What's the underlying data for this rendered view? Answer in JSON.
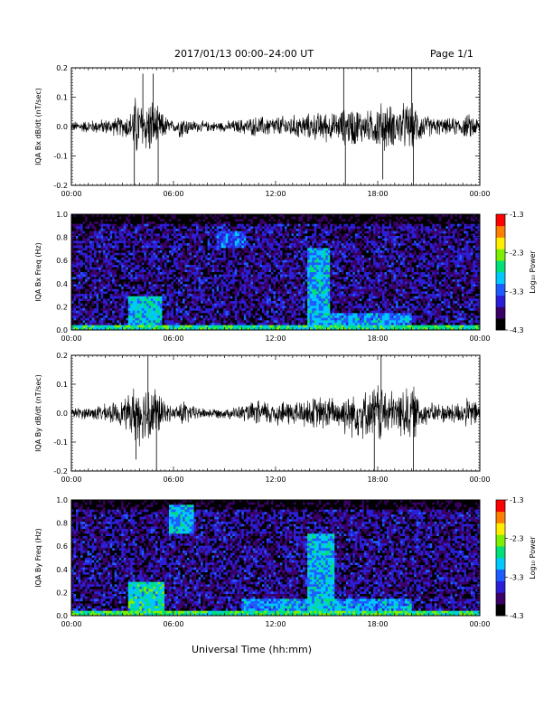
{
  "header": {
    "title": "2017/01/13  00:00–24:00 UT",
    "page": "Page 1/1"
  },
  "xaxis_title": "Universal Time (hh:mm)",
  "colorbar": {
    "label": "Log₁₀ Power",
    "ticks": [
      "-1.3",
      "-2.3",
      "-3.3",
      "-4.3"
    ],
    "colors": [
      "#000000",
      "#3a0066",
      "#2a1fd6",
      "#1e5cff",
      "#00c8ff",
      "#00e07a",
      "#7cf000",
      "#ffee00",
      "#ff8000",
      "#ff0000"
    ]
  },
  "chart_data": [
    {
      "type": "line",
      "title": "",
      "xlabel": "",
      "ylabel": "IQA Bx dB/dt (nT/sec)",
      "x_ticks": [
        "00:00",
        "06:00",
        "12:00",
        "18:00",
        "00:00"
      ],
      "xlim": [
        0,
        24
      ],
      "ylim": [
        -0.2,
        0.2
      ],
      "y_ticks": [
        "0.2",
        "0.1",
        "0.0",
        "-0.1",
        "-0.2"
      ],
      "envelope": {
        "hours": [
          0,
          1,
          2,
          3,
          3.5,
          3.8,
          4.0,
          4.3,
          4.6,
          5.0,
          5.4,
          6.0,
          6.5,
          7,
          8,
          9,
          10,
          11,
          12,
          13,
          14,
          15,
          15.5,
          16,
          16.5,
          17,
          17.5,
          18,
          18.5,
          19,
          19.5,
          20,
          20.5,
          21,
          22,
          23,
          23.5,
          24
        ],
        "amplitude": [
          0.02,
          0.025,
          0.03,
          0.04,
          0.06,
          0.13,
          0.1,
          0.09,
          0.12,
          0.08,
          0.05,
          0.02,
          0.05,
          0.025,
          0.02,
          0.02,
          0.03,
          0.04,
          0.04,
          0.045,
          0.05,
          0.06,
          0.05,
          0.07,
          0.08,
          0.07,
          0.06,
          0.09,
          0.1,
          0.07,
          0.09,
          0.09,
          0.06,
          0.04,
          0.03,
          0.04,
          0.05,
          0.03
        ]
      },
      "spikes": [
        {
          "hour": 3.7,
          "value": -0.2
        },
        {
          "hour": 4.2,
          "value": 0.18
        },
        {
          "hour": 4.8,
          "value": 0.18
        },
        {
          "hour": 5.1,
          "value": -0.2
        },
        {
          "hour": 16.0,
          "value": 0.2
        },
        {
          "hour": 16.1,
          "value": -0.2
        },
        {
          "hour": 18.3,
          "value": -0.18
        },
        {
          "hour": 20.0,
          "value": 0.2
        },
        {
          "hour": 20.1,
          "value": -0.2
        }
      ]
    },
    {
      "type": "heatmap",
      "title": "",
      "xlabel": "",
      "ylabel": "IQA Bx Freq (Hz)",
      "x_ticks": [
        "00:00",
        "06:00",
        "12:00",
        "18:00",
        "00:00"
      ],
      "xlim": [
        0,
        24
      ],
      "ylim": [
        0,
        1.0
      ],
      "y_ticks": [
        "1.0",
        "0.8",
        "0.6",
        "0.4",
        "0.2",
        "0.0"
      ],
      "zlim": [
        -4.3,
        -1.3
      ],
      "z_label": "Log₁₀ Power",
      "background_log_power": -3.8,
      "features": [
        {
          "hours": [
            0,
            24
          ],
          "freq": [
            0.0,
            0.04
          ],
          "log_power": -2.7
        },
        {
          "hours": [
            3.3,
            5.3
          ],
          "freq": [
            0.0,
            0.3
          ],
          "log_power": -2.9
        },
        {
          "hours": [
            13.8,
            15.2
          ],
          "freq": [
            0.0,
            0.7
          ],
          "log_power": -3.0
        },
        {
          "hours": [
            8.5,
            10.2
          ],
          "freq": [
            0.7,
            0.85
          ],
          "log_power": -3.3
        },
        {
          "hours": [
            15,
            20
          ],
          "freq": [
            0.0,
            0.15
          ],
          "log_power": -3.1
        }
      ]
    },
    {
      "type": "line",
      "title": "",
      "xlabel": "",
      "ylabel": "IQA By dB/dt (nT/sec)",
      "x_ticks": [
        "00:00",
        "06:00",
        "12:00",
        "18:00",
        "00:00"
      ],
      "xlim": [
        0,
        24
      ],
      "ylim": [
        -0.2,
        0.2
      ],
      "y_ticks": [
        "0.2",
        "0.1",
        "0.0",
        "-0.1",
        "-0.2"
      ],
      "envelope": {
        "hours": [
          0,
          1,
          2,
          3,
          3.5,
          3.8,
          4.0,
          4.3,
          4.6,
          5.0,
          5.4,
          6.0,
          6.5,
          7,
          8,
          9,
          10,
          11,
          12,
          13,
          14,
          15,
          15.5,
          16,
          16.5,
          17,
          17.5,
          18,
          18.5,
          19,
          19.5,
          20,
          20.5,
          21,
          22,
          23,
          23.5,
          24
        ],
        "amplitude": [
          0.02,
          0.025,
          0.035,
          0.05,
          0.08,
          0.13,
          0.12,
          0.1,
          0.15,
          0.1,
          0.05,
          0.02,
          0.06,
          0.03,
          0.02,
          0.02,
          0.03,
          0.05,
          0.05,
          0.05,
          0.06,
          0.07,
          0.06,
          0.08,
          0.09,
          0.1,
          0.08,
          0.13,
          0.1,
          0.08,
          0.1,
          0.12,
          0.06,
          0.04,
          0.04,
          0.05,
          0.06,
          0.04
        ]
      },
      "spikes": [
        {
          "hour": 3.8,
          "value": -0.16
        },
        {
          "hour": 4.5,
          "value": 0.2
        },
        {
          "hour": 5.0,
          "value": -0.2
        },
        {
          "hour": 17.8,
          "value": -0.2
        },
        {
          "hour": 18.2,
          "value": 0.2
        },
        {
          "hour": 20.1,
          "value": -0.2
        }
      ]
    },
    {
      "type": "heatmap",
      "title": "",
      "xlabel": "",
      "ylabel": "IQA By Freq (Hz)",
      "x_ticks": [
        "00:00",
        "06:00",
        "12:00",
        "18:00",
        "00:00"
      ],
      "xlim": [
        0,
        24
      ],
      "ylim": [
        0,
        1.0
      ],
      "y_ticks": [
        "1.0",
        "0.8",
        "0.6",
        "0.4",
        "0.2",
        "0.0"
      ],
      "zlim": [
        -4.3,
        -1.3
      ],
      "z_label": "Log₁₀ Power",
      "background_log_power": -3.8,
      "features": [
        {
          "hours": [
            0,
            24
          ],
          "freq": [
            0.0,
            0.04
          ],
          "log_power": -2.6
        },
        {
          "hours": [
            3.3,
            5.5
          ],
          "freq": [
            0.0,
            0.3
          ],
          "log_power": -2.8
        },
        {
          "hours": [
            5.8,
            7.2
          ],
          "freq": [
            0.7,
            0.95
          ],
          "log_power": -3.0
        },
        {
          "hours": [
            13.8,
            15.5
          ],
          "freq": [
            0.0,
            0.7
          ],
          "log_power": -3.0
        },
        {
          "hours": [
            10,
            20
          ],
          "freq": [
            0.0,
            0.15
          ],
          "log_power": -3.1
        }
      ]
    }
  ]
}
